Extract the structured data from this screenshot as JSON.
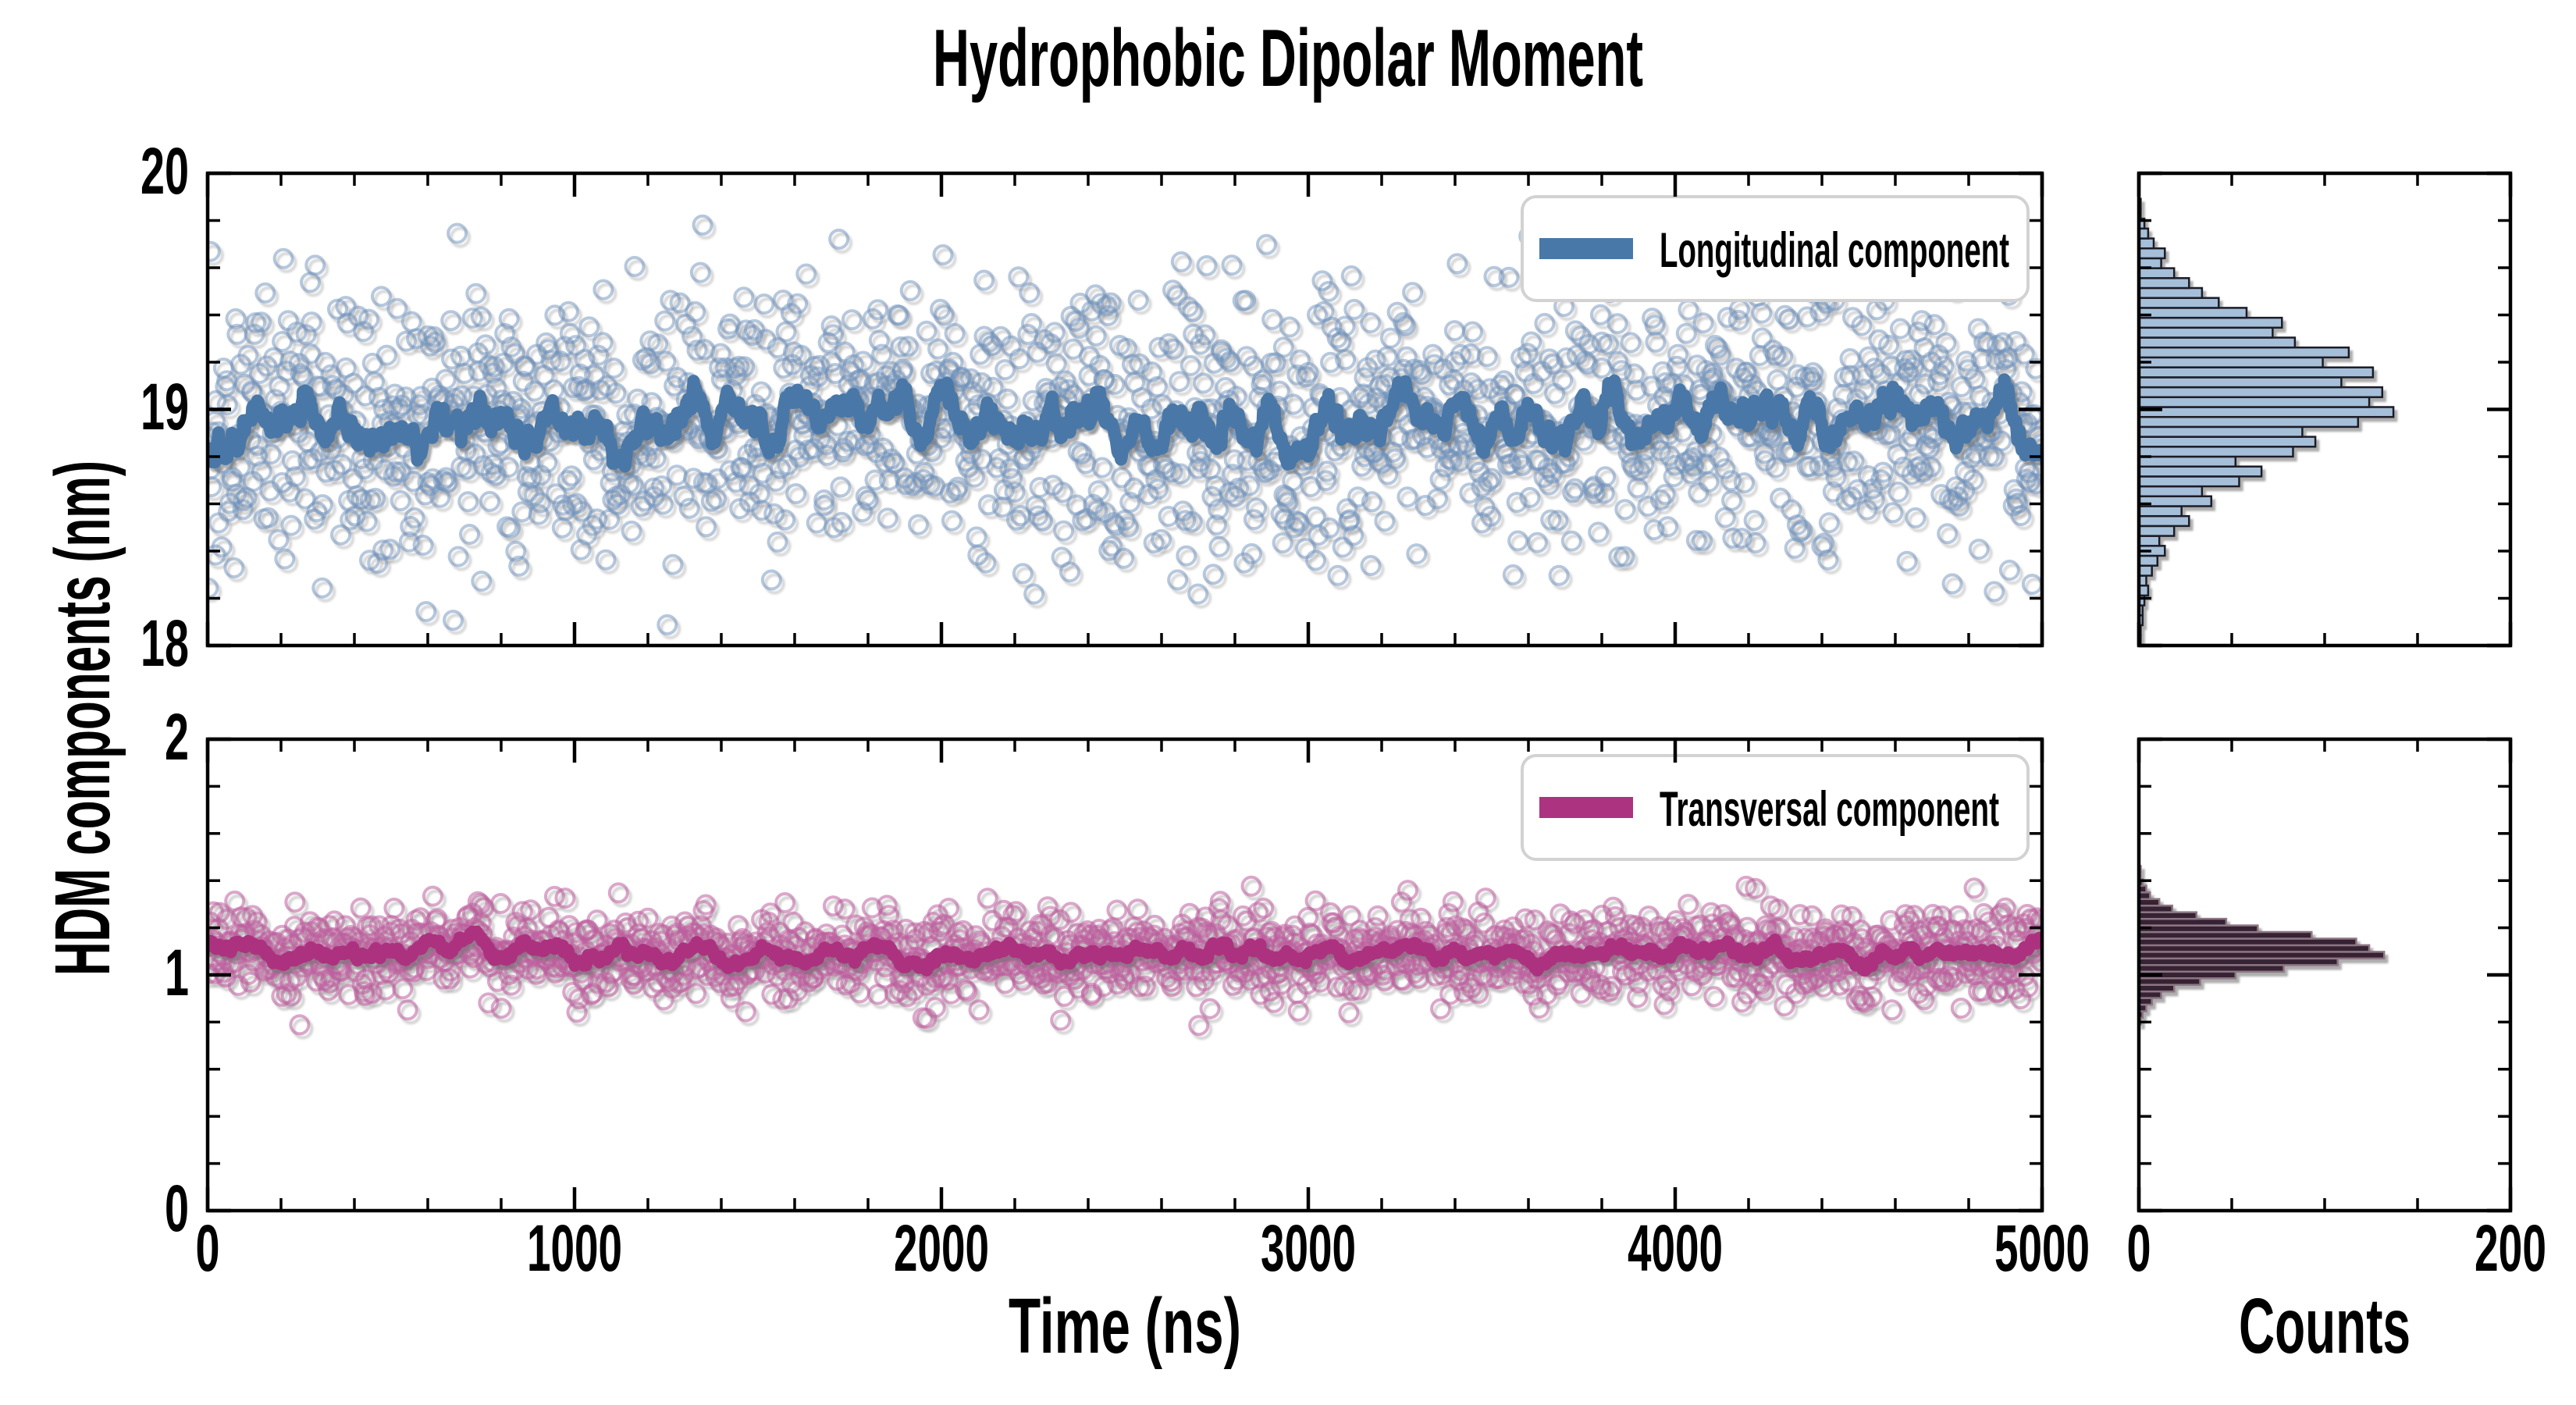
{
  "figure": {
    "title": "Hydrophobic Dipolar Moment",
    "background": "#ffffff",
    "frame_color": "#000000"
  },
  "axes": {
    "x_label": "Time (ns)",
    "y_label": "HDM components (nm)",
    "counts_label": "Counts",
    "x_range": [
      0,
      5000
    ],
    "x_tick_labels": [
      "0",
      "1000",
      "2000",
      "3000",
      "4000",
      "5000"
    ],
    "x_major_step": 1000,
    "x_minor_step": 200,
    "counts_range": [
      0,
      200
    ],
    "counts_tick_labels": [
      "0",
      "200"
    ],
    "counts_major_step": 200,
    "counts_minor_step": 50,
    "top_y_range": [
      18,
      20
    ],
    "top_y_tick_labels": [
      "20",
      "19",
      "18"
    ],
    "bottom_y_range": [
      0,
      2
    ],
    "bottom_y_tick_labels": [
      "2",
      "1",
      "0"
    ],
    "y_major_step": 1,
    "y_minor_step": 0.2,
    "grid": false
  },
  "chart_data": [
    {
      "type": "scatter",
      "panel": "top",
      "legend_label": "Longitudinal component",
      "legend_position": "upper right",
      "x_range_ns": [
        0,
        5000
      ],
      "n_points": 1500,
      "mean_nm": 18.95,
      "sd_nm": 0.3,
      "y_extent_nm": [
        18.03,
        19.82
      ],
      "marker_color": "#6e92bc",
      "marker_opacity": 0.5,
      "line_color": "#4878a8",
      "line_role": "running average",
      "line_mean_nm": 18.95,
      "seed": 20240101,
      "histogram": {
        "type": "bar",
        "orientation": "horizontal",
        "bin_start_nm": 17.96,
        "bin_width_nm": 0.042,
        "fill": "#a6bfd9",
        "edge": "#1b1b26",
        "counts": [
          0,
          1,
          1,
          2,
          2,
          3,
          5,
          4,
          7,
          10,
          14,
          11,
          19,
          27,
          23,
          39,
          34,
          54,
          66,
          52,
          83,
          95,
          88,
          118,
          137,
          124,
          131,
          109,
          126,
          99,
          113,
          84,
          72,
          77,
          58,
          43,
          34,
          27,
          19,
          12,
          14,
          8,
          5,
          3,
          1,
          1
        ]
      }
    },
    {
      "type": "scatter",
      "panel": "bottom",
      "legend_label": "Transversal component",
      "legend_position": "upper right",
      "x_range_ns": [
        0,
        5000
      ],
      "n_points": 1500,
      "mean_nm": 1.09,
      "sd_nm": 0.095,
      "y_extent_nm": [
        0.78,
        1.48
      ],
      "marker_color": "#bd5f9e",
      "marker_opacity": 0.55,
      "line_color": "#ac3380",
      "line_role": "running average",
      "line_mean_nm": 1.09,
      "seed": 777,
      "histogram": {
        "type": "bar",
        "orientation": "horizontal",
        "bin_start_nm": 0.79,
        "bin_width_nm": 0.028,
        "fill": "#362030",
        "edge": "#8d7684",
        "counts": [
          1,
          2,
          4,
          7,
          12,
          19,
          33,
          52,
          78,
          107,
          132,
          124,
          117,
          93,
          64,
          47,
          31,
          18,
          11,
          6,
          4,
          2,
          1,
          1
        ]
      }
    }
  ],
  "legend": {
    "box_fill": "#ffffff",
    "box_border": "#d2d2d2"
  }
}
